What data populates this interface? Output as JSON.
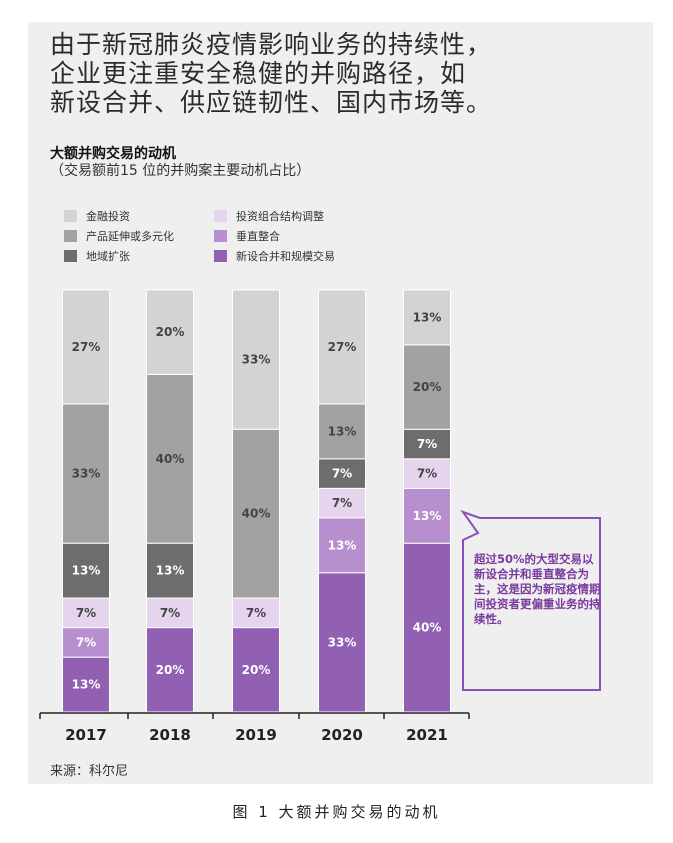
{
  "headline": [
    "由于新冠肺炎疫情影响业务的持续性，",
    "企业更注重安全稳健的并购路径，如",
    "新设合并、供应链韧性、国内市场等。"
  ],
  "source": "来源：科尔尼",
  "caption": "图 1  大额并购交易的动机",
  "callout": "超过50%的大型交易以新设合并和垂直整合为主，这是因为新冠疫情期间投资者更偏重业务的持续性。",
  "colors": {
    "金融投资": "#d3d3d3",
    "产品延伸或多元化": "#a2a2a2",
    "地域扩张": "#6d6d6d",
    "投资组合结构调整": "#e6d3ed",
    "垂直整合": "#b78fcf",
    "新设合并和规模交易": "#9160b3",
    "callout_border": "#8a4fb8"
  },
  "chart_data": {
    "type": "bar",
    "stacked": true,
    "title": "大额并购交易的动机",
    "subtitle": "（交易额前15 位的并购案主要动机占比）",
    "categories": [
      "2017",
      "2018",
      "2019",
      "2020",
      "2021"
    ],
    "series": [
      {
        "name": "新设合并和规模交易",
        "values": [
          13,
          20,
          20,
          33,
          40
        ]
      },
      {
        "name": "垂直整合",
        "values": [
          7,
          0,
          0,
          13,
          13
        ]
      },
      {
        "name": "投资组合结构调整",
        "values": [
          7,
          7,
          7,
          7,
          7
        ]
      },
      {
        "name": "地域扩张",
        "values": [
          13,
          13,
          0,
          7,
          7
        ]
      },
      {
        "name": "产品延伸或多元化",
        "values": [
          33,
          40,
          40,
          13,
          20
        ]
      },
      {
        "name": "金融投资",
        "values": [
          27,
          20,
          33,
          27,
          13
        ]
      }
    ],
    "legend_order": [
      "金融投资",
      "投资组合结构调整",
      "产品延伸或多元化",
      "垂直整合",
      "地域扩张",
      "新设合并和规模交易"
    ],
    "legend_position": "top-left",
    "unit": "%",
    "grid": false
  }
}
